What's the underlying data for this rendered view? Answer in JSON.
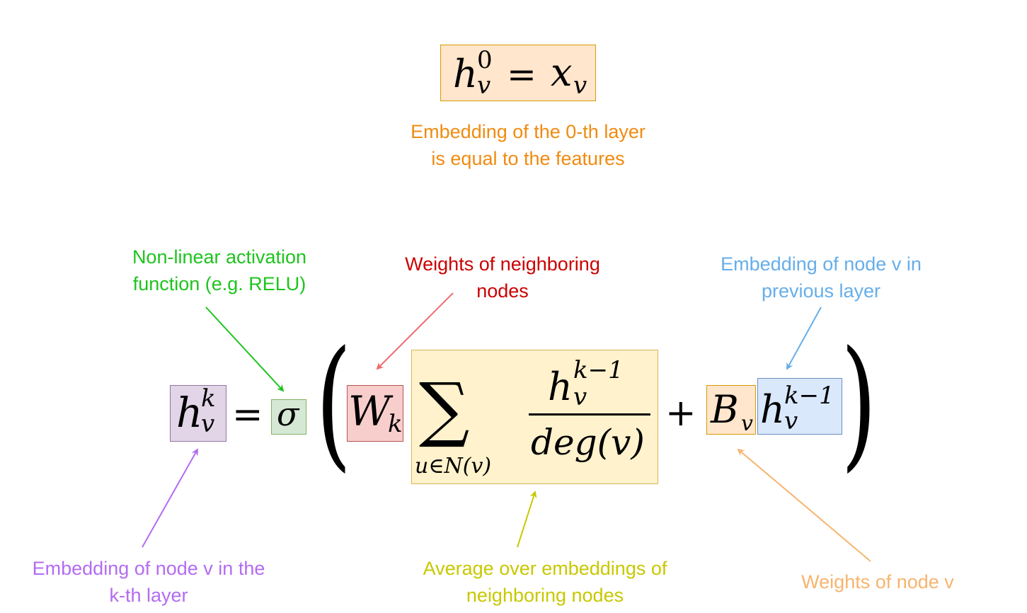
{
  "colors": {
    "orange_text": "#f08b10",
    "green": "#1ec41e",
    "red": "#cc0000",
    "red_arrow": "#ef6b6b",
    "blue": "#66aee9",
    "purple": "#b36cf2",
    "olive": "#c8c800",
    "peach": "#f7b46e"
  },
  "top_equation": {
    "h": "h",
    "sup": "0",
    "sub": "v",
    "eq": "=",
    "x": "x",
    "x_sub": "v"
  },
  "main_equation": {
    "lhs": "h",
    "lhs_sup": "k",
    "lhs_sub": "v",
    "eq": "=",
    "sigma": "σ",
    "paren_open": "(",
    "paren_close": ")",
    "W": "W",
    "W_sub": "k",
    "sum": "∑",
    "sum_sub": "u∈N(v)",
    "num": "h",
    "num_sup": "k−1",
    "num_sub": "v",
    "den": "deg(v)",
    "plus": "+",
    "B": "B",
    "B_sub": "v",
    "prev": "h",
    "prev_sup": "k−1",
    "prev_sub": "v"
  },
  "annotations": {
    "layer0": {
      "line1": "Embedding of the 0-th layer",
      "line2": "is equal to the features"
    },
    "activation": {
      "line1": "Non-linear activation",
      "line2": "function (e.g. RELU)"
    },
    "neighbor_weights": {
      "line1": "Weights of neighboring",
      "line2": "nodes"
    },
    "prev_embedding": {
      "line1": "Embedding of node v in",
      "line2": "previous layer"
    },
    "kth_embedding": {
      "line1": "Embedding of node v in the",
      "line2": "k-th layer"
    },
    "average": {
      "line1": "Average over embeddings of",
      "line2": "neighboring nodes"
    },
    "node_weights": {
      "line1": "Weights of node v"
    }
  }
}
